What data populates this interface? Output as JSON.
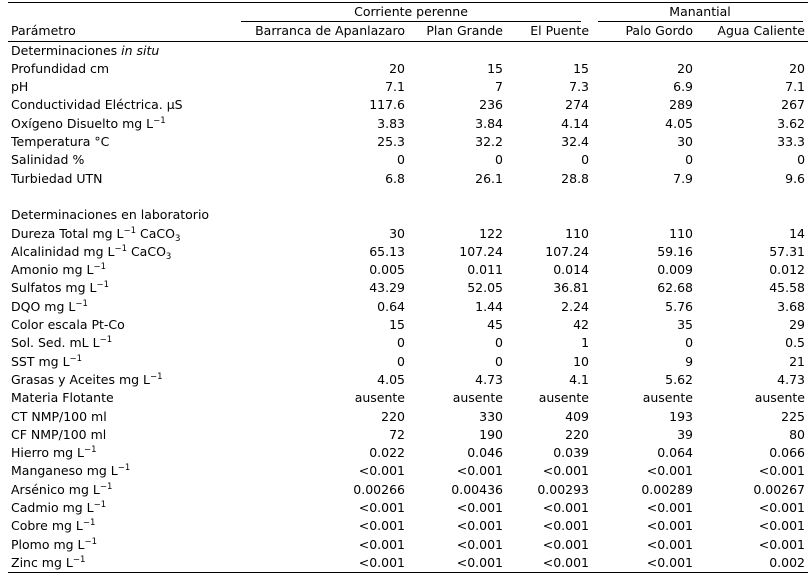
{
  "header": {
    "group_perennial": "Corriente perenne",
    "group_spring": "Manantial",
    "param_label": "Parámetro",
    "sites": [
      "Barranca de Apanlazaro",
      "Plan Grande",
      "El Puente",
      "Palo Gordo",
      "Agua Caliente"
    ]
  },
  "sections": {
    "in_situ_prefix": "Determinaciones ",
    "in_situ_italic": "in situ",
    "lab": "Determinaciones en laboratorio"
  },
  "in_situ_rows": [
    {
      "label": "Profundidad cm",
      "values": [
        "20",
        "15",
        "15",
        "20",
        "20"
      ]
    },
    {
      "label": "pH",
      "values": [
        "7.1",
        "7",
        "7.3",
        "6.9",
        "7.1"
      ]
    },
    {
      "label": "Conductividad Eléctrica. µS",
      "values": [
        "117.6",
        "236",
        "274",
        "289",
        "267"
      ]
    },
    {
      "label": "Oxígeno Disuelto mg L",
      "sup": "−1",
      "values": [
        "3.83",
        "3.84",
        "4.14",
        "4.05",
        "3.62"
      ]
    },
    {
      "label": "Temperatura °C",
      "values": [
        "25.3",
        "32.2",
        "32.4",
        "30",
        "33.3"
      ]
    },
    {
      "label": "Salinidad %",
      "values": [
        "0",
        "0",
        "0",
        "0",
        "0"
      ]
    },
    {
      "label": "Turbiedad UTN",
      "values": [
        "6.8",
        "26.1",
        "28.8",
        "7.9",
        "9.6"
      ]
    }
  ],
  "lab_rows": [
    {
      "label": "Dureza Total mg L",
      "sup": "−1",
      "suffix": " CaCO",
      "sub": "3",
      "values": [
        "30",
        "122",
        "110",
        "110",
        "14"
      ]
    },
    {
      "label": "Alcalinidad mg L",
      "sup": "−1",
      "suffix": " CaCO",
      "sub": "3",
      "values": [
        "65.13",
        "107.24",
        "107.24",
        "59.16",
        "57.31"
      ]
    },
    {
      "label": "Amonio mg L",
      "sup": "−1",
      "values": [
        "0.005",
        "0.011",
        "0.014",
        "0.009",
        "0.012"
      ]
    },
    {
      "label": "Sulfatos mg L",
      "sup": "−1",
      "values": [
        "43.29",
        "52.05",
        "36.81",
        "62.68",
        "45.58"
      ]
    },
    {
      "label": "DQO mg L",
      "sup": "−1",
      "values": [
        "0.64",
        "1.44",
        "2.24",
        "5.76",
        "3.68"
      ]
    },
    {
      "label": "Color escala Pt-Co",
      "values": [
        "15",
        "45",
        "42",
        "35",
        "29"
      ]
    },
    {
      "label": "Sol. Sed. mL L",
      "sup": "−1",
      "values": [
        "0",
        "0",
        "1",
        "0",
        "0.5"
      ]
    },
    {
      "label": "SST mg L",
      "sup": "−1",
      "values": [
        "0",
        "0",
        "10",
        "9",
        "21"
      ]
    },
    {
      "label": "Grasas y Aceites mg L",
      "sup": "−1",
      "values": [
        "4.05",
        "4.73",
        "4.1",
        "5.62",
        "4.73"
      ]
    },
    {
      "label": "Materia Flotante",
      "values": [
        "ausente",
        "ausente",
        "ausente",
        "ausente",
        "ausente"
      ]
    },
    {
      "label": "CT NMP/100 ml",
      "values": [
        "220",
        "330",
        "409",
        "193",
        "225"
      ]
    },
    {
      "label": "CF NMP/100 ml",
      "values": [
        "72",
        "190",
        "220",
        "39",
        "80"
      ]
    },
    {
      "label": "Hierro mg L",
      "sup": "−1",
      "values": [
        "0.022",
        "0.046",
        "0.039",
        "0.064",
        "0.066"
      ]
    },
    {
      "label": "Manganeso mg L",
      "sup": "−1",
      "values": [
        "<0.001",
        "<0.001",
        "<0.001",
        "<0.001",
        "<0.001"
      ]
    },
    {
      "label": "Arsénico mg L",
      "sup": "−1",
      "values": [
        "0.00266",
        "0.00436",
        "0.00293",
        "0.00289",
        "0.00267"
      ]
    },
    {
      "label": "Cadmio mg L",
      "sup": "−1",
      "values": [
        "<0.001",
        "<0.001",
        "<0.001",
        "<0.001",
        "<0.001"
      ]
    },
    {
      "label": "Cobre mg L",
      "sup": "−1",
      "values": [
        "<0.001",
        "<0.001",
        "<0.001",
        "<0.001",
        "<0.001"
      ]
    },
    {
      "label": "Plomo mg L",
      "sup": "−1",
      "values": [
        "<0.001",
        "<0.001",
        "<0.001",
        "<0.001",
        "<0.001"
      ]
    },
    {
      "label": "Zinc mg L",
      "sup": "−1",
      "values": [
        "<0.001",
        "<0.001",
        "<0.001",
        "<0.001",
        "0.002"
      ]
    }
  ]
}
